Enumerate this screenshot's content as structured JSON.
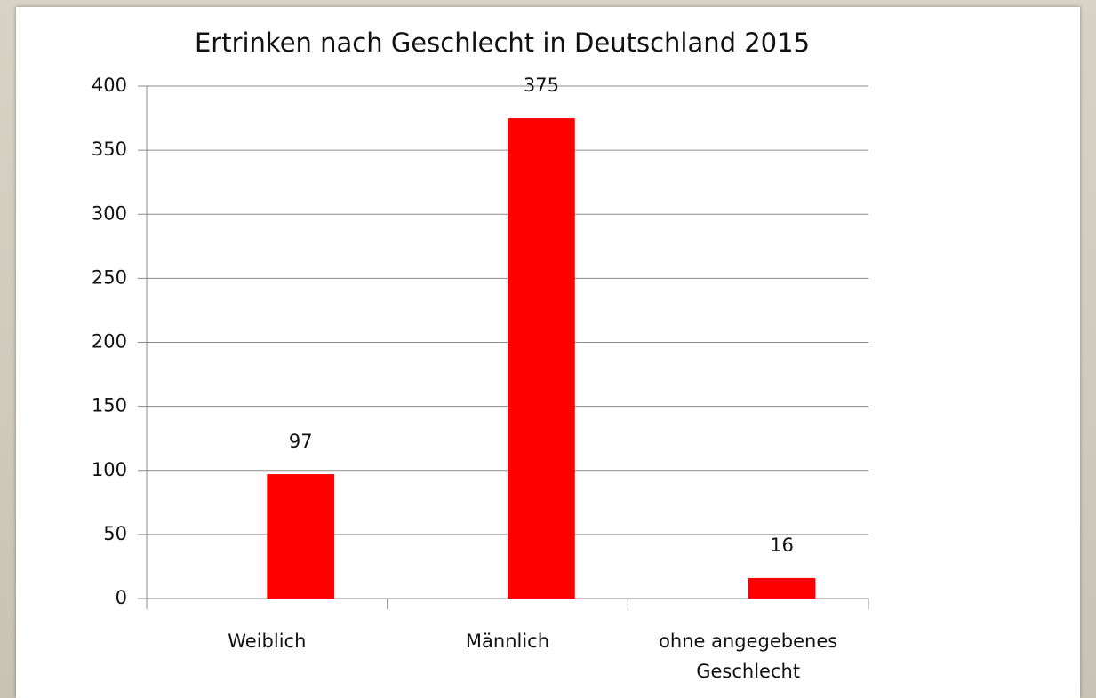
{
  "chart_data": {
    "type": "bar",
    "title": "Ertrinken nach Geschlecht in Deutschland 2015",
    "categories": [
      "Weiblich",
      "Männlich",
      "ohne angegebenes Geschlecht"
    ],
    "values": [
      97,
      375,
      16
    ],
    "color": "#ff0000",
    "ylim": [
      0,
      400
    ],
    "yticks": [
      0,
      50,
      100,
      150,
      200,
      250,
      300,
      350,
      400
    ],
    "grid": true
  }
}
